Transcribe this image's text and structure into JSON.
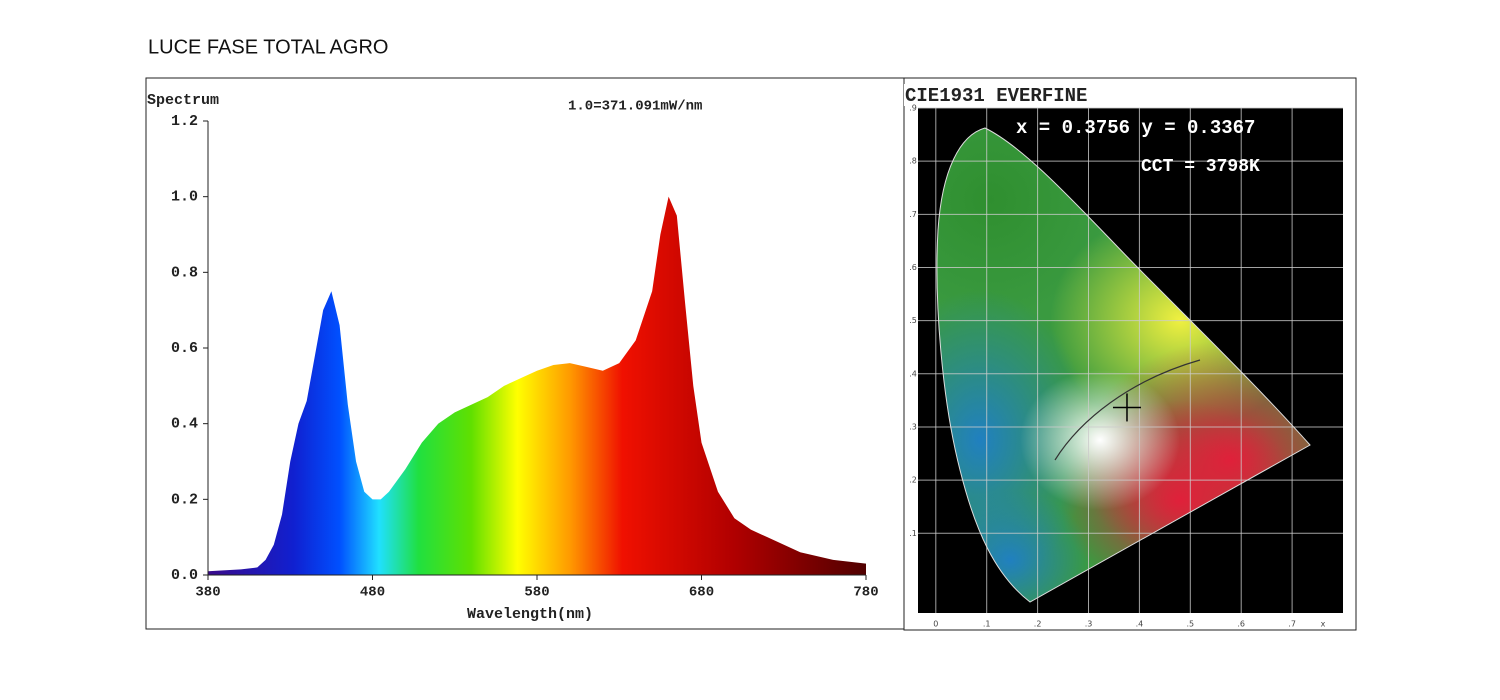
{
  "page_title": "LUCE FASE TOTAL AGRO",
  "chart_data": [
    {
      "type": "area",
      "ylabel": "Spectrum",
      "annotation": "1.0=371.091mW/nm",
      "xlabel": "Wavelength(nm)",
      "x": [
        380,
        400,
        410,
        415,
        420,
        425,
        430,
        435,
        440,
        445,
        450,
        455,
        460,
        465,
        470,
        475,
        480,
        485,
        490,
        500,
        510,
        520,
        530,
        540,
        550,
        560,
        570,
        580,
        590,
        600,
        610,
        620,
        630,
        640,
        650,
        655,
        660,
        665,
        670,
        675,
        680,
        690,
        700,
        710,
        720,
        740,
        760,
        780
      ],
      "values": [
        0.01,
        0.015,
        0.02,
        0.04,
        0.08,
        0.16,
        0.3,
        0.4,
        0.46,
        0.58,
        0.7,
        0.75,
        0.66,
        0.45,
        0.3,
        0.22,
        0.2,
        0.2,
        0.22,
        0.28,
        0.35,
        0.4,
        0.43,
        0.45,
        0.47,
        0.5,
        0.52,
        0.54,
        0.555,
        0.56,
        0.55,
        0.54,
        0.56,
        0.62,
        0.75,
        0.9,
        1.0,
        0.95,
        0.72,
        0.5,
        0.35,
        0.22,
        0.15,
        0.12,
        0.1,
        0.06,
        0.04,
        0.03
      ],
      "xlim": [
        380,
        780
      ],
      "xticks": [
        380,
        480,
        580,
        680,
        780
      ],
      "ylim": [
        0,
        1.2
      ],
      "yticks": [
        {
          "value": 0,
          "label": "0.0"
        },
        0.2,
        0.4,
        0.6,
        0.8,
        {
          "value": 1,
          "label": "1.0"
        },
        1.2
      ]
    },
    {
      "type": "cie",
      "title": "CIE1931 EVERFINE",
      "annotations": [
        "x = 0.3756 y = 0.3367",
        "CCT = 3798K"
      ],
      "point": {
        "x": 0.3756,
        "y": 0.3367
      },
      "xlabel": "x",
      "xlim": [
        -0.035,
        0.8
      ],
      "ylim": [
        -0.05,
        0.9
      ],
      "xticks": [
        0,
        {
          "value": 0.1,
          "label": ".1"
        },
        {
          "value": 0.2,
          "label": ".2"
        },
        {
          "value": 0.3,
          "label": ".3"
        },
        {
          "value": 0.4,
          "label": ".4"
        },
        {
          "value": 0.5,
          "label": ".5"
        },
        {
          "value": 0.6,
          "label": ".6"
        },
        {
          "value": 0.7,
          "label": ".7"
        }
      ],
      "yticks": [
        {
          "value": 0.1,
          "label": ".1"
        },
        {
          "value": 0.2,
          "label": ".2"
        },
        {
          "value": 0.3,
          "label": ".3"
        },
        {
          "value": 0.4,
          "label": ".4"
        },
        {
          "value": 0.5,
          "label": ".5"
        },
        {
          "value": 0.6,
          "label": ".6"
        },
        {
          "value": 0.7,
          "label": ".7"
        },
        {
          "value": 0.8,
          "label": ".8"
        },
        {
          "value": 0.9,
          "label": ".9"
        }
      ]
    }
  ]
}
